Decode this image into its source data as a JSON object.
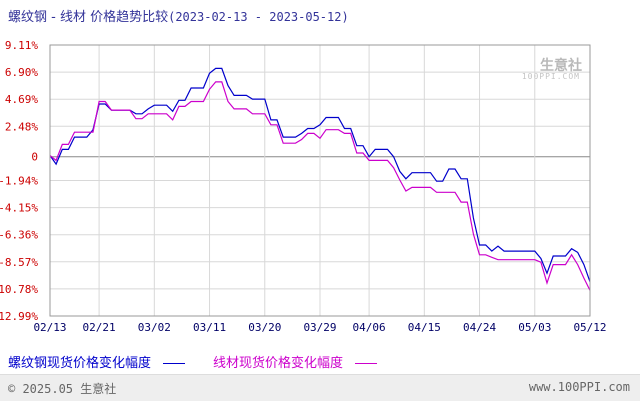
{
  "header": {
    "title": "螺纹钢 - 线材 价格趋势比较",
    "date_range": "(2023-02-13 - 2023-05-12)"
  },
  "watermark": {
    "brand": "生意社",
    "sub": "100PPI.COM"
  },
  "legend": {
    "series1": "螺纹钢现货价格变化幅度",
    "series2": "线材现货价格变化幅度"
  },
  "footer": {
    "copyright": "© 2025.05 生意社",
    "url": "www.100PPI.com"
  },
  "colors": {
    "series1": "#0000cc",
    "series2": "#cc00cc",
    "ytick": "#cc0000",
    "xtick": "#000066",
    "grid": "#d8d8d8",
    "zero": "#888888"
  },
  "chart_data": {
    "type": "line",
    "title": "螺纹钢 - 线材 价格趋势比较",
    "xlabel": "",
    "ylabel": "",
    "ylim": [
      -12.99,
      9.11
    ],
    "yticks": [
      "9.11%",
      "6.90%",
      "4.69%",
      "2.48%",
      "0",
      "-1.94%",
      "-4.15%",
      "-6.36%",
      "-8.57%",
      "-10.78%",
      "-12.99%"
    ],
    "ytick_values": [
      9.11,
      6.9,
      4.69,
      2.48,
      0,
      -1.94,
      -4.15,
      -6.36,
      -8.57,
      -10.78,
      -12.99
    ],
    "xticks": [
      "02/13",
      "02/21",
      "03/02",
      "03/11",
      "03/20",
      "03/29",
      "04/06",
      "04/15",
      "04/24",
      "05/03",
      "05/12"
    ],
    "x": [
      "02/13",
      "02/14",
      "02/15",
      "02/16",
      "02/17",
      "02/18",
      "02/19",
      "02/20",
      "02/21",
      "02/22",
      "02/23",
      "02/24",
      "02/25",
      "02/26",
      "02/27",
      "02/28",
      "03/01",
      "03/02",
      "03/03",
      "03/04",
      "03/05",
      "03/06",
      "03/07",
      "03/08",
      "03/09",
      "03/10",
      "03/11",
      "03/12",
      "03/13",
      "03/14",
      "03/15",
      "03/16",
      "03/17",
      "03/18",
      "03/19",
      "03/20",
      "03/21",
      "03/22",
      "03/23",
      "03/24",
      "03/25",
      "03/26",
      "03/27",
      "03/28",
      "03/29",
      "03/30",
      "03/31",
      "04/01",
      "04/02",
      "04/03",
      "04/04",
      "04/05",
      "04/06",
      "04/07",
      "04/08",
      "04/09",
      "04/10",
      "04/11",
      "04/12",
      "04/13",
      "04/14",
      "04/15",
      "04/16",
      "04/17",
      "04/18",
      "04/19",
      "04/20",
      "04/21",
      "04/22",
      "04/23",
      "04/24",
      "04/25",
      "04/26",
      "04/27",
      "04/28",
      "04/29",
      "04/30",
      "05/01",
      "05/02",
      "05/03",
      "05/04",
      "05/05",
      "05/06",
      "05/07",
      "05/08",
      "05/09",
      "05/10",
      "05/11",
      "05/12"
    ],
    "series": [
      {
        "name": "螺纹钢现货价格变化幅度",
        "values": [
          0.1,
          -0.6,
          0.6,
          0.6,
          1.6,
          1.6,
          1.6,
          2.2,
          4.3,
          4.3,
          3.8,
          3.8,
          3.8,
          3.8,
          3.5,
          3.5,
          3.9,
          4.2,
          4.2,
          4.2,
          3.7,
          4.6,
          4.6,
          5.6,
          5.6,
          5.6,
          6.8,
          7.2,
          7.2,
          5.8,
          5.0,
          5.0,
          5.0,
          4.7,
          4.7,
          4.7,
          3.0,
          3.0,
          1.6,
          1.6,
          1.6,
          1.9,
          2.3,
          2.3,
          2.6,
          3.2,
          3.2,
          3.2,
          2.3,
          2.3,
          0.9,
          0.9,
          0.0,
          0.6,
          0.6,
          0.6,
          0.0,
          -1.2,
          -1.8,
          -1.3,
          -1.3,
          -1.3,
          -1.3,
          -2.0,
          -2.0,
          -1.0,
          -1.0,
          -1.8,
          -1.8,
          -5.0,
          -7.2,
          -7.2,
          -7.7,
          -7.3,
          -7.7,
          -7.7,
          -7.7,
          -7.7,
          -7.7,
          -7.7,
          -8.3,
          -9.5,
          -8.1,
          -8.1,
          -8.1,
          -7.5,
          -7.8,
          -8.8,
          -10.2
        ]
      },
      {
        "name": "线材现货价格变化幅度",
        "values": [
          0.1,
          -0.3,
          1.0,
          1.0,
          2.0,
          2.0,
          2.0,
          2.0,
          4.5,
          4.5,
          3.8,
          3.8,
          3.8,
          3.8,
          3.1,
          3.1,
          3.5,
          3.5,
          3.5,
          3.5,
          3.0,
          4.1,
          4.1,
          4.5,
          4.5,
          4.5,
          5.5,
          6.1,
          6.1,
          4.5,
          3.9,
          3.9,
          3.9,
          3.5,
          3.5,
          3.5,
          2.6,
          2.6,
          1.1,
          1.1,
          1.1,
          1.4,
          1.9,
          1.9,
          1.5,
          2.2,
          2.2,
          2.2,
          1.9,
          1.9,
          0.3,
          0.3,
          -0.3,
          -0.3,
          -0.3,
          -0.3,
          -0.9,
          -1.9,
          -2.8,
          -2.5,
          -2.5,
          -2.5,
          -2.5,
          -2.9,
          -2.9,
          -2.9,
          -2.9,
          -3.7,
          -3.7,
          -6.3,
          -8.0,
          -8.0,
          -8.2,
          -8.4,
          -8.4,
          -8.4,
          -8.4,
          -8.4,
          -8.4,
          -8.4,
          -8.6,
          -10.3,
          -8.8,
          -8.8,
          -8.8,
          -8.0,
          -8.8,
          -9.9,
          -10.9
        ]
      }
    ],
    "grid": true,
    "legend_position": "bottom"
  }
}
